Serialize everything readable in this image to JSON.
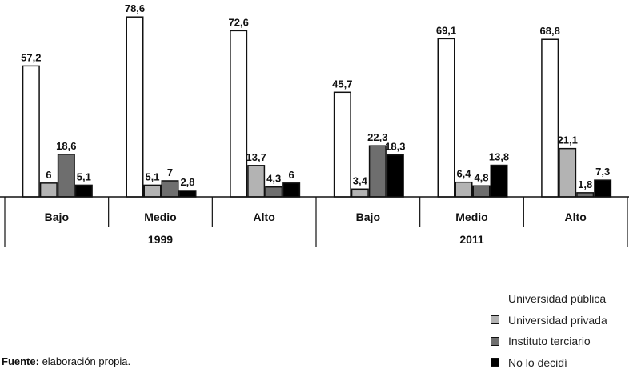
{
  "chart_data": {
    "type": "bar",
    "groups": [
      {
        "year": "1999",
        "categories": [
          "Bajo",
          "Medio",
          "Alto"
        ]
      },
      {
        "year": "2011",
        "categories": [
          "Bajo",
          "Medio",
          "Alto"
        ]
      }
    ],
    "categories": [
      "Bajo",
      "Medio",
      "Alto",
      "Bajo",
      "Medio",
      "Alto"
    ],
    "series": [
      {
        "name": "Universidad pública",
        "color": "#ffffff",
        "values": [
          57.2,
          78.6,
          72.6,
          45.7,
          69.1,
          68.8
        ],
        "labels": [
          "57,2",
          "78,6",
          "72,6",
          "45,7",
          "69,1",
          "68,8"
        ]
      },
      {
        "name": "Universidad privada",
        "color": "#b3b3b3",
        "values": [
          6,
          5.1,
          13.7,
          3.4,
          6.4,
          21.1
        ],
        "labels": [
          "6",
          "5,1",
          "13,7",
          "3,4",
          "6,4",
          "21,1"
        ]
      },
      {
        "name": "Instituto terciario",
        "color": "#6e6e6e",
        "values": [
          18.6,
          7,
          4.3,
          22.3,
          4.8,
          1.8
        ],
        "labels": [
          "18,6",
          "7",
          "4,3",
          "22,3",
          "4,8",
          "1,8"
        ]
      },
      {
        "name": "No lo decidí",
        "color": "#000000",
        "values": [
          5.1,
          2.8,
          6,
          18.3,
          13.8,
          7.3
        ],
        "labels": [
          "5,1",
          "2,8",
          "6",
          "18,3",
          "13,8",
          "7,3"
        ]
      }
    ],
    "legend_position": "bottom-right",
    "grid": false
  },
  "source": {
    "label": "Fuente:",
    "text": " elaboración propia."
  }
}
